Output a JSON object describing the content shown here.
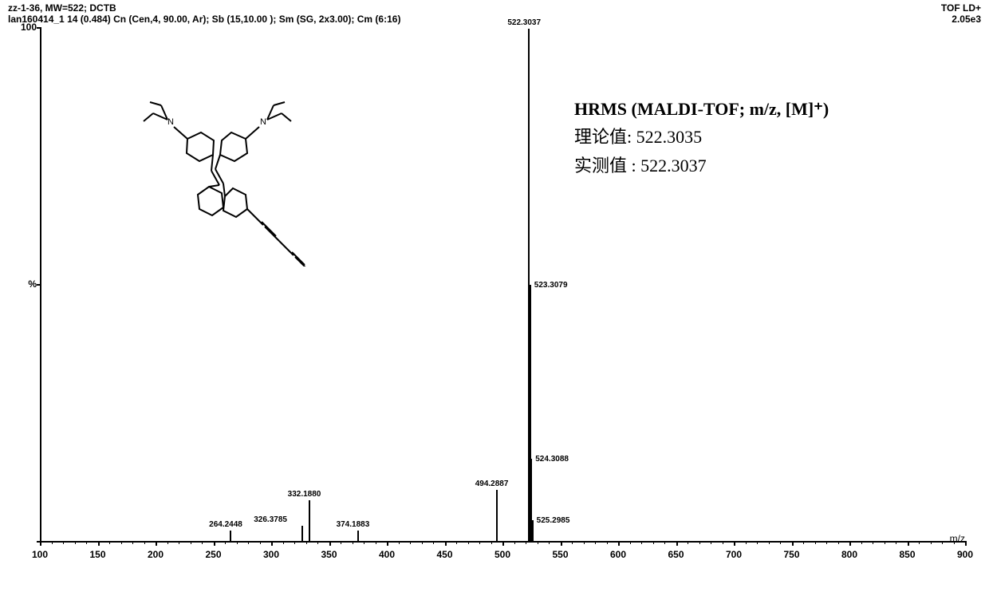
{
  "header": {
    "line1": "zz-1-36, MW=522; DCTB",
    "line2": "lan160414_1  14 (0.484) Cn (Cen,4, 90.00, Ar); Sb (15,10.00 ); Sm (SG, 2x3.00); Cm (6:16)",
    "right1": "TOF LD+",
    "right2": "2.05e3"
  },
  "chart": {
    "type": "mass-spectrum",
    "background_color": "#ffffff",
    "axis_color": "#000000",
    "x_title": "m/z",
    "xlim": [
      100,
      900
    ],
    "ylim": [
      0,
      100
    ],
    "y_ticks": [
      {
        "v": 0,
        "label": ""
      },
      {
        "v": 50,
        "label": "%"
      },
      {
        "v": 100,
        "label": "100"
      }
    ],
    "x_ticks": [
      100,
      150,
      200,
      250,
      300,
      350,
      400,
      450,
      500,
      550,
      600,
      650,
      700,
      750,
      800,
      850,
      900
    ],
    "x_minor_step": 10,
    "peaks": [
      {
        "mz": 264.24,
        "intensity": 2,
        "label": "264.2448",
        "label_side": "top"
      },
      {
        "mz": 326.38,
        "intensity": 3,
        "label": "326.3785",
        "label_side": "top-left"
      },
      {
        "mz": 332.18,
        "intensity": 8,
        "label": "332.1880",
        "label_side": "top"
      },
      {
        "mz": 374.19,
        "intensity": 2,
        "label": "374.1883",
        "label_side": "top"
      },
      {
        "mz": 494.29,
        "intensity": 10,
        "label": "494.2887",
        "label_side": "top"
      },
      {
        "mz": 522.3,
        "intensity": 100,
        "label": "522.3037",
        "label_side": "top"
      },
      {
        "mz": 523.31,
        "intensity": 50,
        "label": "523.3079",
        "label_side": "right"
      },
      {
        "mz": 524.31,
        "intensity": 16,
        "label": "524.3088",
        "label_side": "right"
      },
      {
        "mz": 525.3,
        "intensity": 4,
        "label": "525.2985",
        "label_side": "right"
      }
    ]
  },
  "annotation": {
    "title": "HRMS (MALDI-TOF; m/z, [M]⁺)",
    "theoretical_label": "理论值:",
    "theoretical_value": "522.3035",
    "observed_label": "实测值 :",
    "observed_value": "522.3037"
  },
  "molecule": {
    "description": "tetraphenylethylene with two diethylamino groups and diyne substituent",
    "stroke": "#000000"
  }
}
